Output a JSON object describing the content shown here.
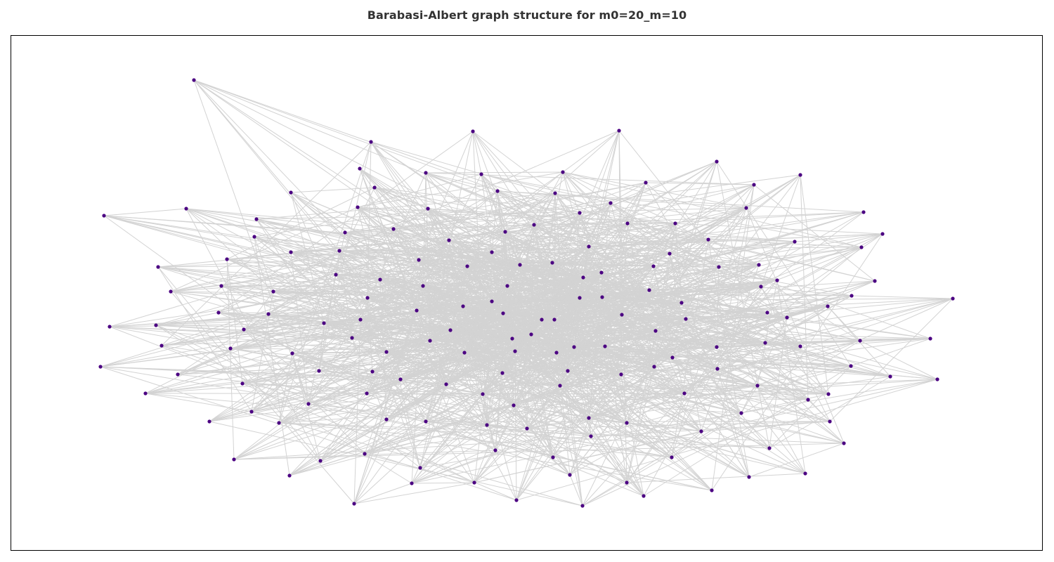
{
  "title": "Barabasi-Albert graph structure for m0=20_m=10",
  "colors": {
    "edge": "#d3d3d3",
    "node": "#4b0082",
    "title": "#333333",
    "frame": "#000000"
  },
  "graph": {
    "type": "barabasi-albert",
    "m0": 20,
    "m": 10,
    "node_count": 200
  }
}
